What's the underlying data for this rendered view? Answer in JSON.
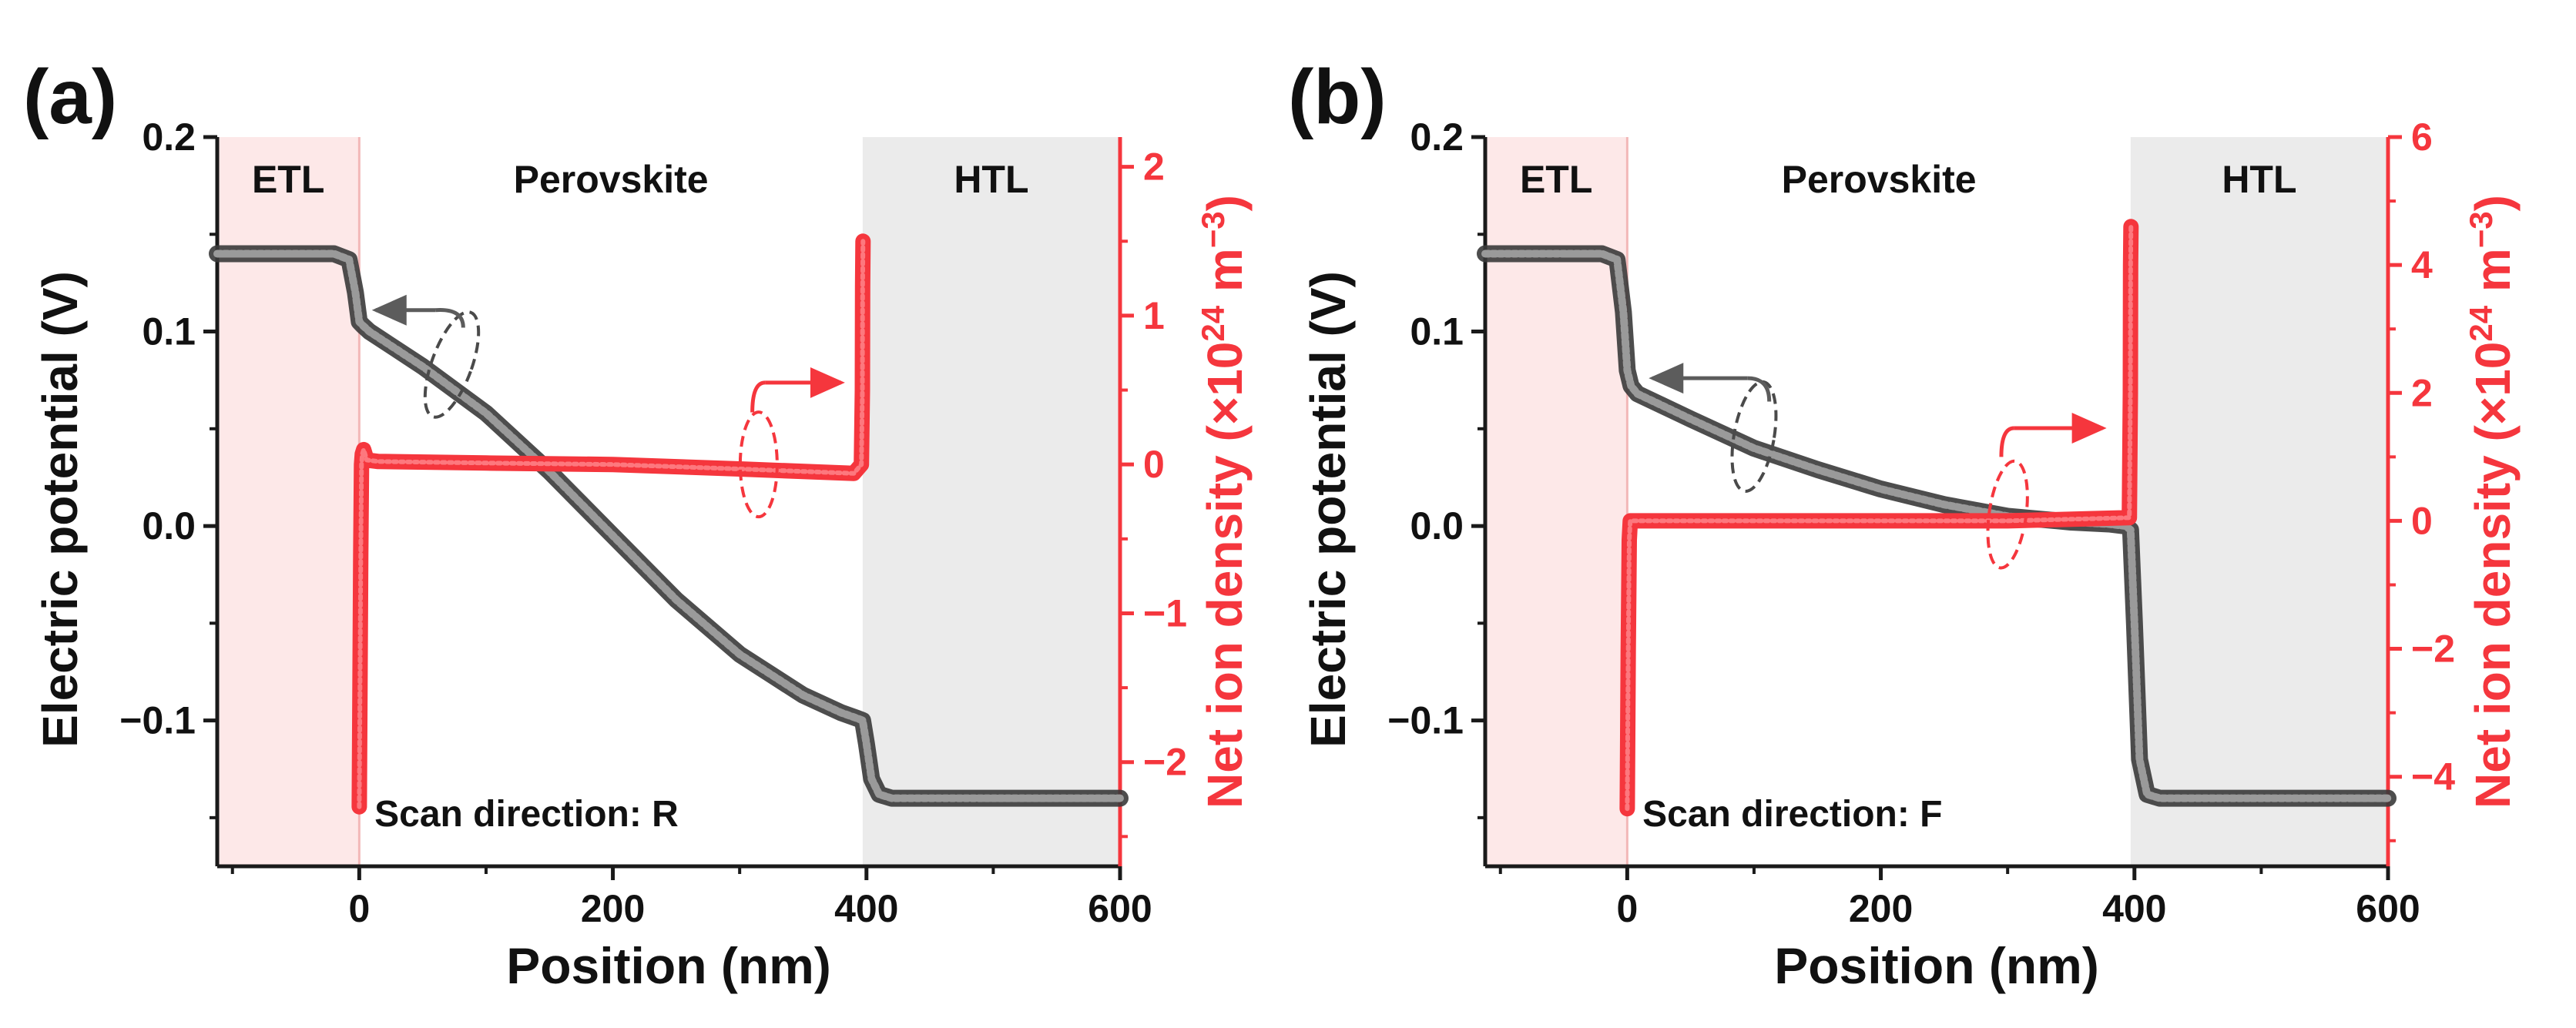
{
  "figure": {
    "colors": {
      "potential": "#5c5c5c",
      "ion_density": "#f5363d",
      "etl_band": "#fde8e8",
      "htl_band": "#ebebeb",
      "axis": "#1a1a1a"
    }
  },
  "chart_data": [
    {
      "type": "line",
      "panel_label": "(a)",
      "xlabel": "Position (nm)",
      "ylabel": "Electric potential (V)",
      "y2label_prefix": "Net ion density (×10",
      "y2label_exp": "24",
      "y2label_unit": " m",
      "y2label_unit_exp": "−3",
      "y2label_suffix": ")",
      "xlim": [
        -112,
        600
      ],
      "xticks": [
        0,
        200,
        400,
        600
      ],
      "xtick_labels": [
        "0",
        "200",
        "400",
        "600"
      ],
      "ylim": [
        -0.175,
        0.2
      ],
      "yticks": [
        -0.1,
        0.0,
        0.1,
        0.2
      ],
      "ytick_labels": [
        "−0.1",
        "0.0",
        "0.1",
        "0.2"
      ],
      "y2lim": [
        -2.7,
        2.2
      ],
      "y2ticks": [
        -2,
        -1,
        0,
        1,
        2
      ],
      "y2tick_labels": [
        "−2",
        "−1",
        "0",
        "1",
        "2"
      ],
      "regions": [
        {
          "label": "ETL",
          "x0": -112,
          "x1": 0
        },
        {
          "label": "Perovskite",
          "x0": 0,
          "x1": 397
        },
        {
          "label": "HTL",
          "x0": 397,
          "x1": 600
        }
      ],
      "annotation": "Scan direction: R",
      "series": [
        {
          "name": "Electric potential",
          "axis": "left",
          "x": [
            -112,
            -20,
            -8,
            -3,
            0,
            3,
            8,
            50,
            100,
            150,
            200,
            250,
            300,
            350,
            380,
            393,
            397,
            400,
            404,
            410,
            420,
            500,
            600
          ],
          "y": [
            0.14,
            0.14,
            0.137,
            0.12,
            0.105,
            0.103,
            0.1,
            0.082,
            0.058,
            0.028,
            -0.005,
            -0.038,
            -0.066,
            -0.087,
            -0.096,
            -0.099,
            -0.1,
            -0.112,
            -0.13,
            -0.138,
            -0.14,
            -0.14,
            -0.14
          ]
        },
        {
          "name": "Net ion density",
          "axis": "right",
          "x": [
            0,
            0.6,
            1.2,
            1.8,
            2.4,
            3.5,
            6,
            15,
            100,
            200,
            300,
            390,
            396,
            396.8,
            397,
            397.3
          ],
          "y": [
            -2.3,
            -1.5,
            -0.6,
            0.0,
            0.07,
            0.1,
            0.03,
            0.02,
            0.01,
            0.0,
            -0.03,
            -0.06,
            0.0,
            0.5,
            1.2,
            1.5
          ]
        }
      ],
      "arrows": [
        {
          "target": "left",
          "label": "potential-arrow"
        },
        {
          "target": "right",
          "label": "ion-arrow"
        }
      ]
    },
    {
      "type": "line",
      "panel_label": "(b)",
      "xlabel": "Position (nm)",
      "ylabel": "Electric potential (V)",
      "y2label_prefix": "Net ion density (×10",
      "y2label_exp": "24",
      "y2label_unit": " m",
      "y2label_unit_exp": "−3",
      "y2label_suffix": ")",
      "xlim": [
        -112,
        600
      ],
      "xticks": [
        0,
        200,
        400,
        600
      ],
      "xtick_labels": [
        "0",
        "200",
        "400",
        "600"
      ],
      "ylim": [
        -0.175,
        0.2
      ],
      "yticks": [
        -0.1,
        0.0,
        0.1,
        0.2
      ],
      "ytick_labels": [
        "−0.1",
        "0.0",
        "0.1",
        "0.2"
      ],
      "y2lim": [
        -5.4,
        6.0
      ],
      "y2ticks": [
        -4,
        -2,
        0,
        2,
        4,
        6
      ],
      "y2tick_labels": [
        "−4",
        "−2",
        "0",
        "2",
        "4",
        "6"
      ],
      "regions": [
        {
          "label": "ETL",
          "x0": -112,
          "x1": 0
        },
        {
          "label": "Perovskite",
          "x0": 0,
          "x1": 397
        },
        {
          "label": "HTL",
          "x0": 397,
          "x1": 600
        }
      ],
      "annotation": "Scan direction: F",
      "series": [
        {
          "name": "Electric potential",
          "axis": "left",
          "x": [
            -112,
            -20,
            -8,
            -3,
            0,
            3,
            8,
            50,
            100,
            150,
            200,
            250,
            300,
            350,
            380,
            393,
            397,
            400,
            404,
            410,
            420,
            500,
            600
          ],
          "y": [
            0.14,
            0.14,
            0.137,
            0.11,
            0.08,
            0.072,
            0.068,
            0.055,
            0.04,
            0.029,
            0.019,
            0.011,
            0.005,
            0.002,
            0.001,
            0.0,
            -0.002,
            -0.05,
            -0.12,
            -0.138,
            -0.14,
            -0.14,
            -0.14
          ]
        },
        {
          "name": "Net ion density",
          "axis": "right",
          "x": [
            0,
            0.8,
            1.6,
            2.4,
            4,
            10,
            100,
            200,
            300,
            396,
            396.8,
            397,
            397.3
          ],
          "y": [
            -4.5,
            -2.0,
            -0.3,
            0.0,
            0.0,
            0.0,
            0.0,
            0.0,
            0.0,
            0.05,
            2.0,
            4.0,
            4.6
          ]
        }
      ],
      "arrows": [
        {
          "target": "left",
          "label": "potential-arrow"
        },
        {
          "target": "right",
          "label": "ion-arrow"
        }
      ]
    }
  ]
}
